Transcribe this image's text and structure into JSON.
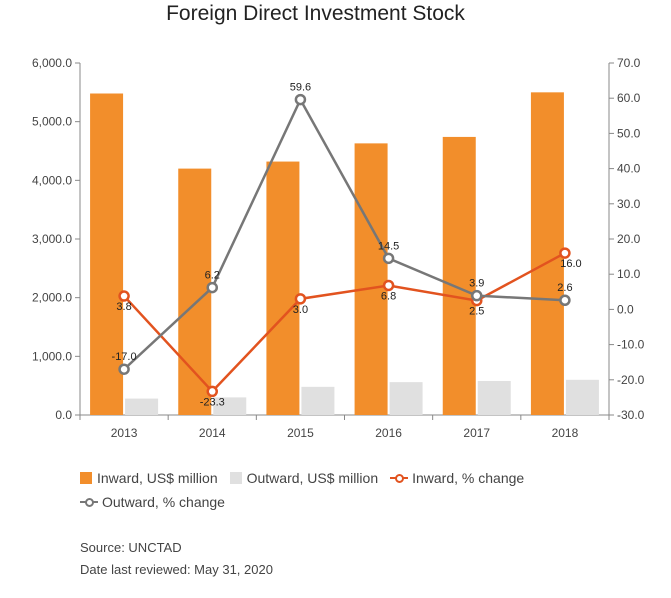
{
  "chart_data": {
    "type": "bar",
    "title": "Foreign Direct Investment Stock",
    "categories": [
      "2013",
      "2014",
      "2015",
      "2016",
      "2017",
      "2018"
    ],
    "series": [
      {
        "name": "Inward, US$ million",
        "kind": "bar",
        "axis": "left",
        "color": "#f28e2b",
        "values": [
          5480,
          4200,
          4320,
          4630,
          4740,
          5500
        ]
      },
      {
        "name": "Outward, US$ million",
        "kind": "bar",
        "axis": "left",
        "color": "#e0e0e0",
        "values": [
          280,
          300,
          480,
          560,
          580,
          600
        ]
      },
      {
        "name": "Inward, % change",
        "kind": "line",
        "axis": "right",
        "color": "#e2531f",
        "values": [
          3.8,
          -23.3,
          3.0,
          6.8,
          2.5,
          16.0
        ]
      },
      {
        "name": "Outward, % change",
        "kind": "line",
        "axis": "right",
        "color": "#777777",
        "values": [
          -17.0,
          6.2,
          59.6,
          14.5,
          3.9,
          2.6
        ]
      }
    ],
    "y_left": {
      "ylim": [
        0,
        6000
      ],
      "ticks": [
        "0.0",
        "1,000.0",
        "2,000.0",
        "3,000.0",
        "4,000.0",
        "5,000.0",
        "6,000.0"
      ]
    },
    "y_right": {
      "ylim": [
        -30,
        70
      ],
      "ticks": [
        "-30.0",
        "-20.0",
        "-10.0",
        "0.0",
        "10.0",
        "20.0",
        "30.0",
        "40.0",
        "50.0",
        "60.0",
        "70.0"
      ]
    },
    "legend_position": "bottom",
    "grid": false
  },
  "footer": {
    "source": "Source: UNCTAD",
    "reviewed": "Date last reviewed: May 31, 2020"
  }
}
